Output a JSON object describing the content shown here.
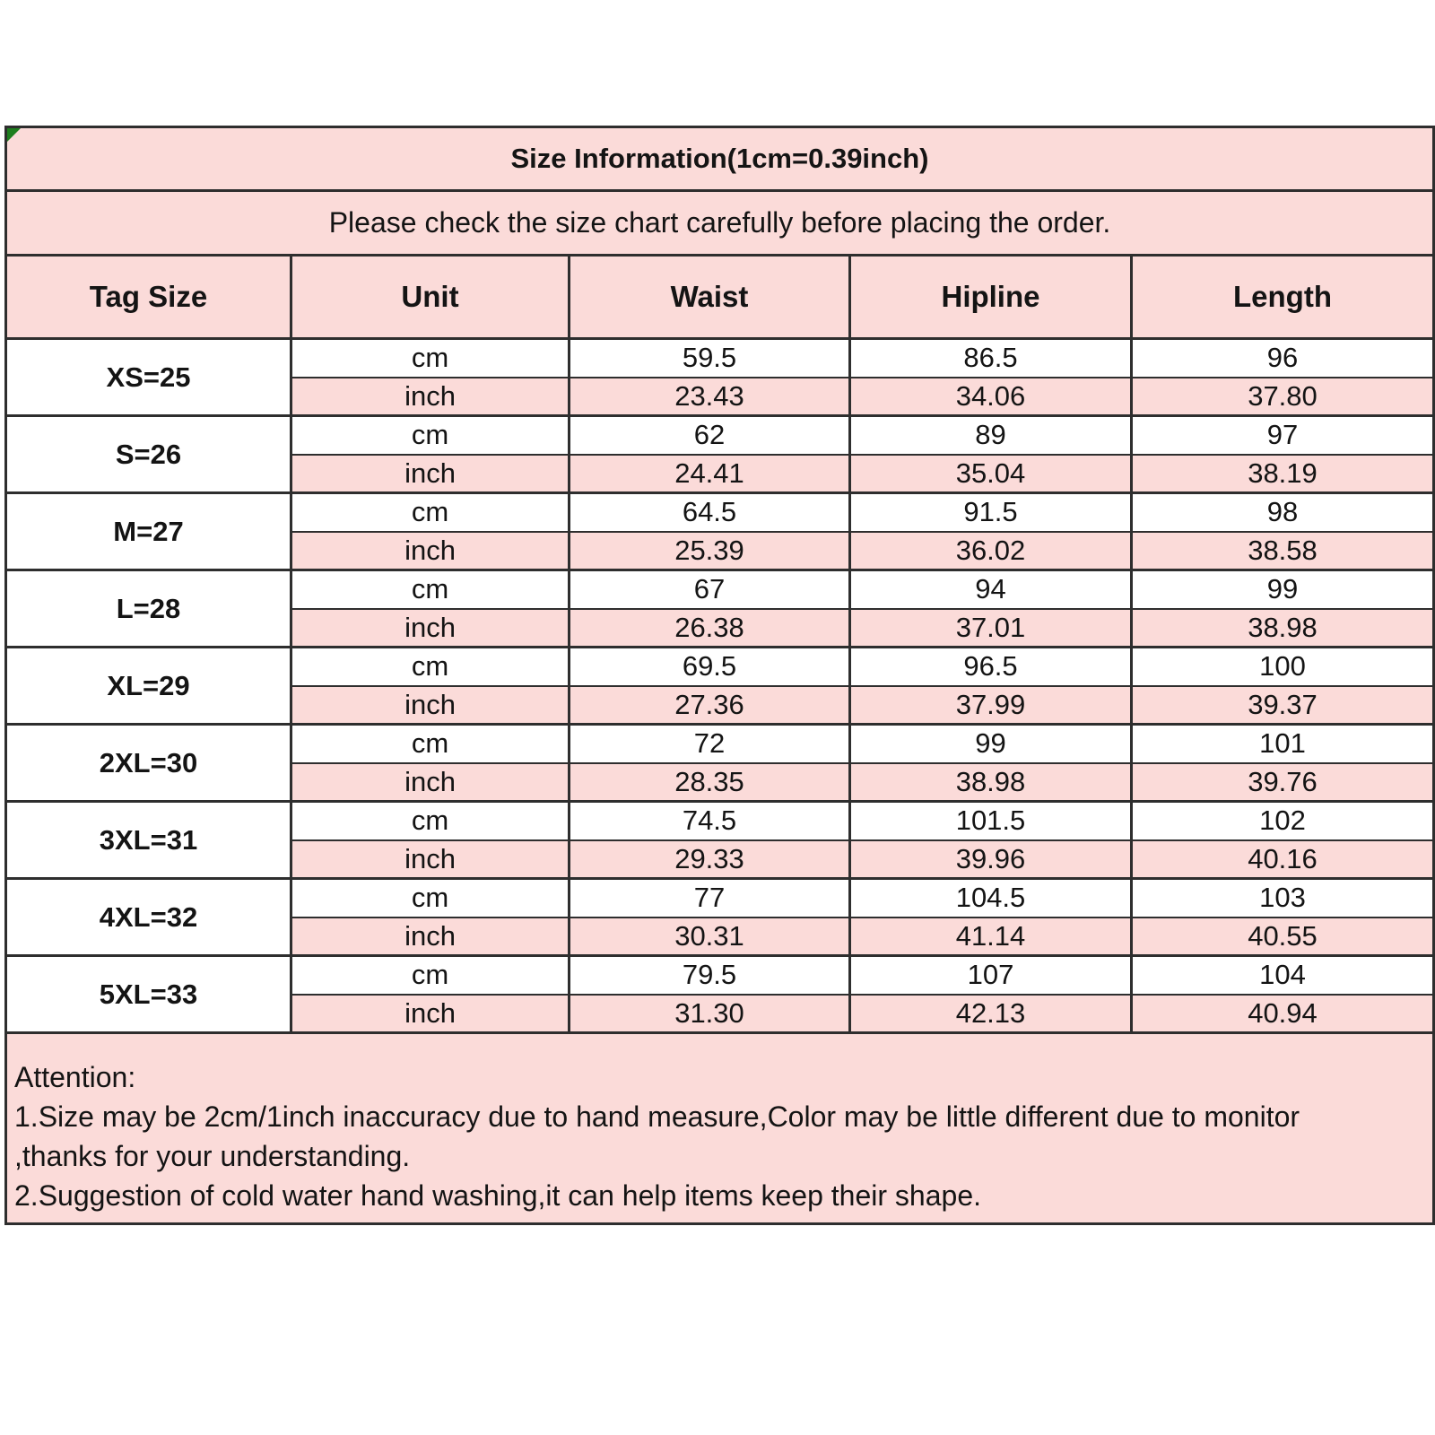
{
  "page": {
    "title": "Size Information(1cm=0.39inch)",
    "subtitle": "Please check the size chart carefully before placing the order."
  },
  "columns": [
    "Tag Size",
    "Unit",
    "Waist",
    "Hipline",
    "Length"
  ],
  "unit_labels": {
    "cm": "cm",
    "inch": "inch"
  },
  "sizes": [
    {
      "tag": "XS=25",
      "cm": [
        "59.5",
        "86.5",
        "96"
      ],
      "inch": [
        "23.43",
        "34.06",
        "37.80"
      ]
    },
    {
      "tag": "S=26",
      "cm": [
        "62",
        "89",
        "97"
      ],
      "inch": [
        "24.41",
        "35.04",
        "38.19"
      ]
    },
    {
      "tag": "M=27",
      "cm": [
        "64.5",
        "91.5",
        "98"
      ],
      "inch": [
        "25.39",
        "36.02",
        "38.58"
      ]
    },
    {
      "tag": "L=28",
      "cm": [
        "67",
        "94",
        "99"
      ],
      "inch": [
        "26.38",
        "37.01",
        "38.98"
      ]
    },
    {
      "tag": "XL=29",
      "cm": [
        "69.5",
        "96.5",
        "100"
      ],
      "inch": [
        "27.36",
        "37.99",
        "39.37"
      ]
    },
    {
      "tag": "2XL=30",
      "cm": [
        "72",
        "99",
        "101"
      ],
      "inch": [
        "28.35",
        "38.98",
        "39.76"
      ]
    },
    {
      "tag": "3XL=31",
      "cm": [
        "74.5",
        "101.5",
        "102"
      ],
      "inch": [
        "29.33",
        "39.96",
        "40.16"
      ]
    },
    {
      "tag": "4XL=32",
      "cm": [
        "77",
        "104.5",
        "103"
      ],
      "inch": [
        "30.31",
        "41.14",
        "40.55"
      ]
    },
    {
      "tag": "5XL=33",
      "cm": [
        "79.5",
        "107",
        "104"
      ],
      "inch": [
        "31.30",
        "42.13",
        "40.94"
      ]
    }
  ],
  "attention": {
    "heading": "Attention:",
    "lines": [
      "1.Size may be 2cm/1inch inaccuracy due to hand measure,Color may be little different due to monitor",
      ",thanks for your understanding.",
      "2.Suggestion of cold water hand washing,it can help items keep their shape."
    ]
  },
  "colors": {
    "table_pink": "#FBDBD9",
    "row_white": "#FFFFFF",
    "border_dark": "#2E2E2E",
    "corner_marker_green": "#1E7E1E",
    "text": "#141414"
  }
}
